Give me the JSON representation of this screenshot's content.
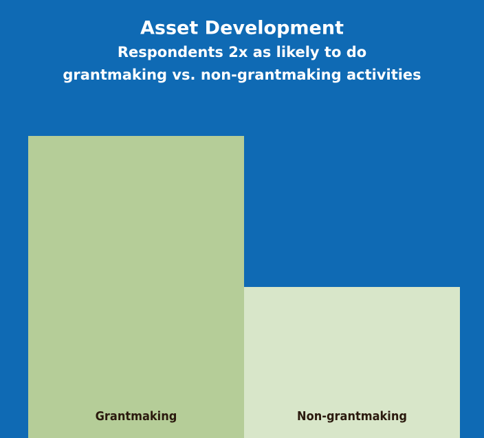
{
  "chart_data": {
    "type": "bar",
    "title": "Asset Development",
    "subtitle": [
      "Respondents 2x as likely to do",
      "grantmaking vs. non-grantmaking activities"
    ],
    "categories": [
      "Grantmaking",
      "Non-grantmaking"
    ],
    "values": [
      2,
      1
    ],
    "colors": [
      "#b5cd98",
      "#d8e6c9"
    ],
    "ylim": [
      0,
      2.2
    ],
    "background": "#0f6ab4"
  }
}
